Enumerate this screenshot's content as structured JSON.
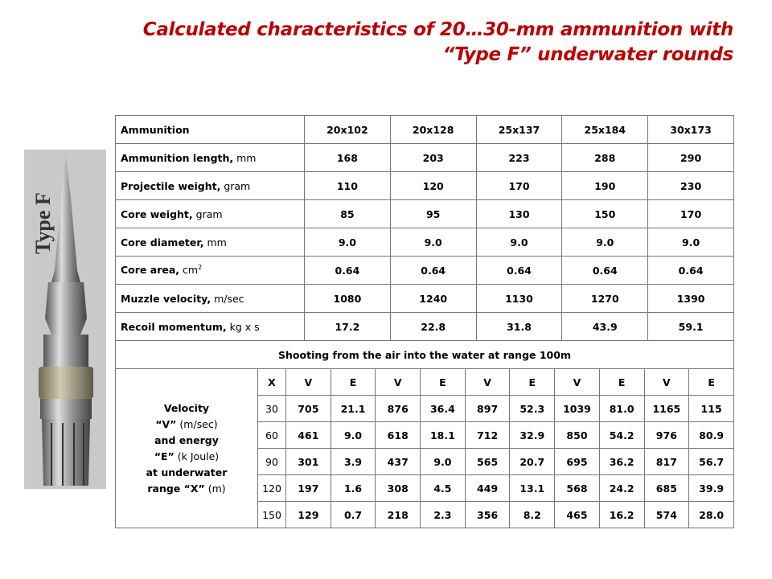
{
  "title": [
    "Calculated characteristics of 20…30-mm ammunition with",
    "“Type F” underwater rounds"
  ],
  "image_label": "Type F",
  "table": {
    "header": [
      "Ammunition",
      "20x102",
      "20x128",
      "25x137",
      "25x184",
      "30x173"
    ],
    "rows": [
      {
        "name": "Ammunition length,",
        "unit": " mm",
        "values": [
          "168",
          "203",
          "223",
          "288",
          "290"
        ]
      },
      {
        "name": "Projectile weight,",
        "unit": " gram",
        "values": [
          "110",
          "120",
          "170",
          "190",
          "230"
        ]
      },
      {
        "name": "Core weight,",
        "unit": " gram",
        "values": [
          "85",
          "95",
          "130",
          "150",
          "170"
        ]
      },
      {
        "name": "Core diameter,",
        "unit": " mm",
        "values": [
          "9.0",
          "9.0",
          "9.0",
          "9.0",
          "9.0"
        ]
      },
      {
        "name": "Core area,",
        "unit": " cm",
        "unit_sup": "2",
        "values": [
          "0.64",
          "0.64",
          "0.64",
          "0.64",
          "0.64"
        ]
      },
      {
        "name": "Muzzle velocity,",
        "unit": " m/sec",
        "values": [
          "1080",
          "1240",
          "1130",
          "1270",
          "1390"
        ]
      },
      {
        "name": "Recoil momentum,",
        "unit": " kg x s",
        "values": [
          "17.2",
          "22.8",
          "31.8",
          "43.9",
          "59.1"
        ]
      }
    ],
    "section": "Shooting from the air into the water at range 100m",
    "underwater": {
      "label": [
        {
          "bold": "Velocity",
          "regular": ""
        },
        {
          "bold": "“V”",
          "regular": " (m/sec)"
        },
        {
          "bold": "and energy",
          "regular": ""
        },
        {
          "bold": "“E”",
          "regular": " (k Joule)"
        },
        {
          "bold": "at underwater",
          "regular": ""
        },
        {
          "bold": "range “X”",
          "regular": " (m)"
        }
      ],
      "columns": [
        "X",
        "V",
        "E",
        "V",
        "E",
        "V",
        "E",
        "V",
        "E",
        "V",
        "E"
      ],
      "rows": [
        [
          "30",
          "705",
          "21.1",
          "876",
          "36.4",
          "897",
          "52.3",
          "1039",
          "81.0",
          "1165",
          "115"
        ],
        [
          "60",
          "461",
          "9.0",
          "618",
          "18.1",
          "712",
          "32.9",
          "850",
          "54.2",
          "976",
          "80.9"
        ],
        [
          "90",
          "301",
          "3.9",
          "437",
          "9.0",
          "565",
          "20.7",
          "695",
          "36.2",
          "817",
          "56.7"
        ],
        [
          "120",
          "197",
          "1.6",
          "308",
          "4.5",
          "449",
          "13.1",
          "568",
          "24.2",
          "685",
          "39.9"
        ],
        [
          "150",
          "129",
          "0.7",
          "218",
          "2.3",
          "356",
          "8.2",
          "465",
          "16.2",
          "574",
          "28.0"
        ]
      ]
    }
  }
}
